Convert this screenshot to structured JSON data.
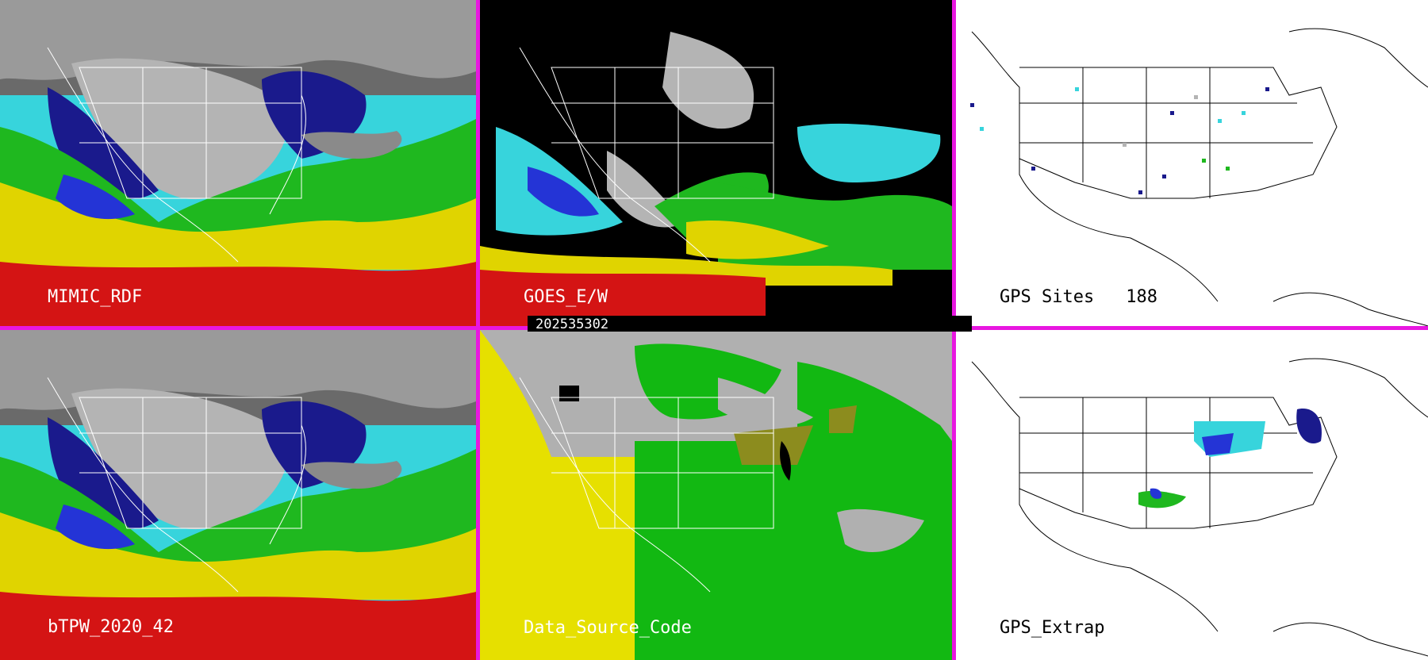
{
  "colors": {
    "divider": "#e817e0",
    "tpw_scale": [
      "#8a8a8a",
      "#1a1a8c",
      "#2434d6",
      "#37d4dc",
      "#1fb81f",
      "#e0d400",
      "#d41414"
    ],
    "source_code": [
      "#b0b0b0",
      "#e6e000",
      "#12b812",
      "#8c8c1e",
      "#000000"
    ]
  },
  "panels": {
    "mimic": {
      "label": "MIMIC_RDF",
      "icon": "tpw-map-image"
    },
    "goes": {
      "label": "GOES_E/W",
      "timestamp": "202535302",
      "icon": "goes-tpw-map-image"
    },
    "gps_sites": {
      "label": "GPS Sites",
      "count": "188",
      "icon": "gps-sites-map-image"
    },
    "btpw": {
      "label": "bTPW_2020_42",
      "icon": "blended-tpw-map-image"
    },
    "source": {
      "label": "Data_Source_Code",
      "icon": "source-code-map-image"
    },
    "gps_extrap": {
      "label": "GPS_Extrap",
      "icon": "gps-extrap-map-image"
    }
  }
}
